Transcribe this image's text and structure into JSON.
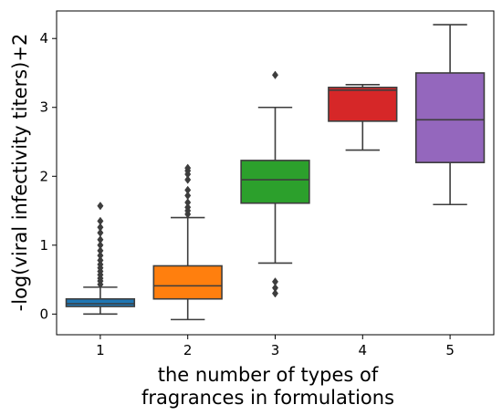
{
  "chart_data": {
    "type": "box",
    "title": "",
    "xlabel": "the number of types of\nfragrances in formulations",
    "ylabel": "-log(viral infectivity titers)+2",
    "ylim": [
      -0.3,
      4.4
    ],
    "yticks": [
      0,
      1,
      2,
      3,
      4
    ],
    "grid": false,
    "categories": [
      "1",
      "2",
      "3",
      "4",
      "5"
    ],
    "boxes": [
      {
        "category": "1",
        "color": "#1f77b4",
        "q1": 0.11,
        "median": 0.15,
        "q3": 0.22,
        "whisker_low": 0.0,
        "whisker_high": 0.39,
        "outliers": [
          0.43,
          0.48,
          0.52,
          0.57,
          0.62,
          0.67,
          0.72,
          0.78,
          0.85,
          0.92,
          1.0,
          1.08,
          1.18,
          1.26,
          1.35,
          1.57
        ]
      },
      {
        "category": "2",
        "color": "#ff7f0e",
        "q1": 0.22,
        "median": 0.41,
        "q3": 0.7,
        "whisker_low": -0.08,
        "whisker_high": 1.4,
        "outliers": [
          1.45,
          1.5,
          1.55,
          1.62,
          1.72,
          1.8,
          1.95,
          2.03,
          2.08,
          2.12
        ]
      },
      {
        "category": "3",
        "color": "#2ca02c",
        "q1": 1.61,
        "median": 1.95,
        "q3": 2.23,
        "whisker_low": 0.74,
        "whisker_high": 3.0,
        "outliers": [
          0.3,
          0.38,
          0.47,
          3.47
        ]
      },
      {
        "category": "4",
        "color": "#d62728",
        "q1": 2.8,
        "median": 3.25,
        "q3": 3.29,
        "whisker_low": 2.38,
        "whisker_high": 3.33,
        "outliers": []
      },
      {
        "category": "5",
        "color": "#9467bd",
        "q1": 2.2,
        "median": 2.82,
        "q3": 3.5,
        "whisker_low": 1.59,
        "whisker_high": 4.2,
        "outliers": []
      }
    ]
  }
}
